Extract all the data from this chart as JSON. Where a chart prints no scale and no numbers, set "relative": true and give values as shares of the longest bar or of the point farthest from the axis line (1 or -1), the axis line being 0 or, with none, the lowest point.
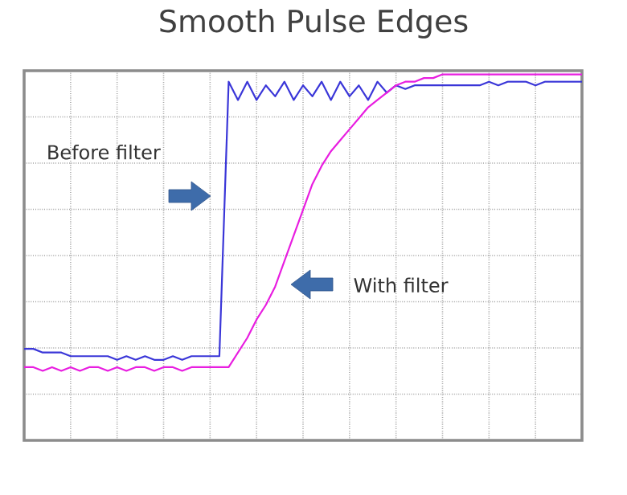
{
  "chart_data": {
    "type": "line",
    "title": "Smooth Pulse Edges",
    "relative": true,
    "grid": true,
    "marker": "none",
    "line_style": "solid",
    "annotations": [
      "Before filter",
      "With filter"
    ],
    "categories": [
      null,
      null,
      null,
      null,
      null,
      null,
      null,
      null,
      null,
      null,
      null,
      null,
      null,
      null,
      null,
      null,
      null,
      null,
      null,
      null,
      null,
      null,
      null,
      null,
      null,
      null,
      null,
      null,
      null,
      null,
      null,
      null,
      null,
      null,
      null,
      null,
      null,
      null,
      null,
      null,
      null,
      null,
      null,
      null,
      null,
      null,
      null,
      null,
      null,
      null,
      null,
      null,
      null,
      null,
      null,
      null,
      null,
      null,
      null,
      null,
      null
    ],
    "series": [
      {
        "color": "#3a36d8",
        "values": [
          0.25,
          0.25,
          0.24,
          0.24,
          0.24,
          0.23,
          0.23,
          0.23,
          0.23,
          0.23,
          0.22,
          0.23,
          0.22,
          0.23,
          0.22,
          0.22,
          0.23,
          0.22,
          0.23,
          0.23,
          0.23,
          0.23,
          0.98,
          0.93,
          0.98,
          0.93,
          0.97,
          0.94,
          0.98,
          0.93,
          0.97,
          0.94,
          0.98,
          0.93,
          0.98,
          0.94,
          0.97,
          0.93,
          0.98,
          0.95,
          0.97,
          0.96,
          0.97,
          0.97,
          0.97,
          0.97,
          0.97,
          0.97,
          0.97,
          0.97,
          0.98,
          0.97,
          0.98,
          0.98,
          0.98,
          0.97,
          0.98,
          0.98,
          0.98,
          0.98,
          0.98
        ]
      },
      {
        "color": "#e81ee0",
        "values": [
          0.2,
          0.2,
          0.19,
          0.2,
          0.19,
          0.2,
          0.19,
          0.2,
          0.2,
          0.19,
          0.2,
          0.19,
          0.2,
          0.2,
          0.19,
          0.2,
          0.2,
          0.19,
          0.2,
          0.2,
          0.2,
          0.2,
          0.2,
          0.24,
          0.28,
          0.33,
          0.37,
          0.42,
          0.49,
          0.56,
          0.63,
          0.7,
          0.75,
          0.79,
          0.82,
          0.85,
          0.88,
          0.91,
          0.93,
          0.95,
          0.97,
          0.98,
          0.98,
          0.99,
          0.99,
          1,
          1,
          1,
          1,
          1,
          1,
          1,
          1,
          1,
          1,
          1,
          1,
          1,
          1,
          1,
          1
        ]
      }
    ]
  }
}
